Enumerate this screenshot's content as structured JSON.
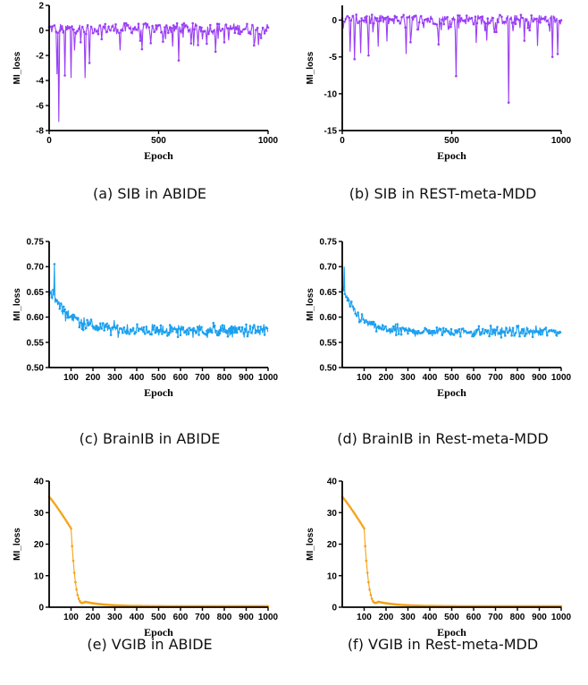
{
  "chart_data": [
    {
      "type": "line",
      "caption": "(a) SIB in ABIDE",
      "xlabel": "Epoch",
      "ylabel": "MI_loss",
      "xlim": [
        0,
        1000
      ],
      "ylim": [
        -8,
        2
      ],
      "xticks": [
        0,
        500,
        1000
      ],
      "yticks": [
        -8,
        -6,
        -4,
        -2,
        0,
        2
      ],
      "color": "#9b3ff5",
      "series": [
        {
          "pattern": "noisy_spiky",
          "mean": 0.1,
          "band": [
            -0.5,
            0.6
          ],
          "spikes": [
            [
              35,
              -3.5
            ],
            [
              45,
              -7.3
            ],
            [
              70,
              -3.6
            ],
            [
              100,
              -3.8
            ],
            [
              115,
              -1.6
            ],
            [
              165,
              -3.8
            ],
            [
              185,
              -2.6
            ],
            [
              325,
              -1.6
            ],
            [
              425,
              -1.5
            ],
            [
              520,
              -0.9
            ],
            [
              590,
              -2.4
            ],
            [
              760,
              -1.7
            ],
            [
              820,
              -0.8
            ],
            [
              935,
              -1.2
            ]
          ]
        }
      ]
    },
    {
      "type": "line",
      "caption": "(b) SIB in REST-meta-MDD",
      "xlabel": "Epoch",
      "ylabel": "MI_loss",
      "xlim": [
        0,
        1000
      ],
      "ylim": [
        -15,
        2
      ],
      "xticks": [
        0,
        500,
        1000
      ],
      "yticks": [
        -15,
        -10,
        -5,
        0
      ],
      "color": "#9b3ff5",
      "series": [
        {
          "pattern": "noisy_spiky",
          "mean": 0.1,
          "band": [
            -0.9,
            0.8
          ],
          "spikes": [
            [
              35,
              -4.3
            ],
            [
              55,
              -5.3
            ],
            [
              85,
              -4.5
            ],
            [
              120,
              -4.8
            ],
            [
              165,
              -3.6
            ],
            [
              205,
              -2.9
            ],
            [
              290,
              -4.6
            ],
            [
              310,
              -3.0
            ],
            [
              440,
              -3.3
            ],
            [
              520,
              -7.6
            ],
            [
              610,
              -3.1
            ],
            [
              660,
              -2.8
            ],
            [
              760,
              -11.2
            ],
            [
              830,
              -2.8
            ],
            [
              890,
              -3.5
            ],
            [
              960,
              -5.0
            ],
            [
              985,
              -4.6
            ]
          ]
        }
      ]
    },
    {
      "type": "line",
      "caption": "(c) BrainIB in ABIDE",
      "xlabel": "Epoch",
      "ylabel": "MI_loss",
      "xlim": [
        0,
        1000
      ],
      "ylim": [
        0.5,
        0.75
      ],
      "xticks": [
        100,
        200,
        300,
        400,
        500,
        600,
        700,
        800,
        900,
        1000
      ],
      "yticks": [
        0.5,
        0.55,
        0.6,
        0.65,
        0.7,
        0.75
      ],
      "color": "#1aa0f0",
      "series": [
        {
          "pattern": "decay_noise",
          "start": 0.655,
          "end": 0.573,
          "tau": 95,
          "noise": 0.009,
          "peak": [
            25,
            0.705
          ]
        }
      ]
    },
    {
      "type": "line",
      "caption": "(d) BrainIB in Rest-meta-MDD",
      "xlabel": "Epoch",
      "ylabel": "MI_loss",
      "xlim": [
        0,
        1000
      ],
      "ylim": [
        0.5,
        0.75
      ],
      "xticks": [
        100,
        200,
        300,
        400,
        500,
        600,
        700,
        800,
        900,
        1000
      ],
      "yticks": [
        0.5,
        0.55,
        0.6,
        0.65,
        0.7,
        0.75
      ],
      "color": "#1aa0f0",
      "series": [
        {
          "pattern": "decay_noise",
          "start": 0.66,
          "end": 0.571,
          "tau": 70,
          "noise": 0.007,
          "peak": [
            10,
            0.7
          ]
        }
      ]
    },
    {
      "type": "line",
      "caption": "(e) VGIB in ABIDE",
      "xlabel": "Epoch",
      "ylabel": "MI_loss",
      "xlim": [
        0,
        1000
      ],
      "ylim": [
        0,
        40
      ],
      "xticks": [
        100,
        200,
        300,
        400,
        500,
        600,
        700,
        800,
        900,
        1000
      ],
      "yticks": [
        0,
        10,
        20,
        30,
        40
      ],
      "color": "#f5a214",
      "series": [
        {
          "pattern": "vgib",
          "start": 35,
          "knee": [
            100,
            25
          ],
          "end": 0.3
        }
      ]
    },
    {
      "type": "line",
      "caption": "(f) VGIB in Rest-meta-MDD",
      "xlabel": "Epoch",
      "ylabel": "MI_loss",
      "xlim": [
        0,
        1000
      ],
      "ylim": [
        0,
        40
      ],
      "xticks": [
        100,
        200,
        300,
        400,
        500,
        600,
        700,
        800,
        900,
        1000
      ],
      "yticks": [
        0,
        10,
        20,
        30,
        40
      ],
      "color": "#f5a214",
      "series": [
        {
          "pattern": "vgib",
          "start": 35,
          "knee": [
            100,
            25
          ],
          "end": 0.3
        }
      ]
    }
  ]
}
